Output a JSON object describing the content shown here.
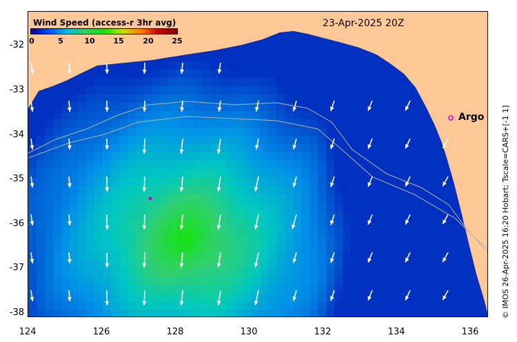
{
  "map": {
    "date_label": "23-Apr-2025 20Z",
    "credit": "© IMOS 26-Apr-2025 16:20 Hobart; Tscale=CARS+[-1 1]",
    "lon_ticks": [
      "124",
      "126",
      "128",
      "130",
      "132",
      "134",
      "136"
    ],
    "lat_ticks": [
      "-32",
      "-33",
      "-34",
      "-35",
      "-36",
      "-37",
      "-38"
    ],
    "lon_range": [
      124,
      136.5
    ],
    "lat_range": [
      -38.05,
      -31.2
    ]
  },
  "colorbar": {
    "title": "Wind Speed (access-r 3hr avg)",
    "ticks": [
      "0",
      "5",
      "10",
      "15",
      "20",
      "25"
    ],
    "range": [
      0,
      25
    ]
  },
  "markers": {
    "argo_label": "Argo",
    "argo_position": [
      135.5,
      -33.6
    ],
    "ocean_float_position": [
      127.3,
      -35.4
    ]
  },
  "colors": {
    "land": "#ffc896",
    "ocean_high": "#14d414",
    "ocean_low": "#0040d8",
    "marker": "#e000d8",
    "arrow": "#ffffff",
    "contour": "#b4b4b4"
  }
}
